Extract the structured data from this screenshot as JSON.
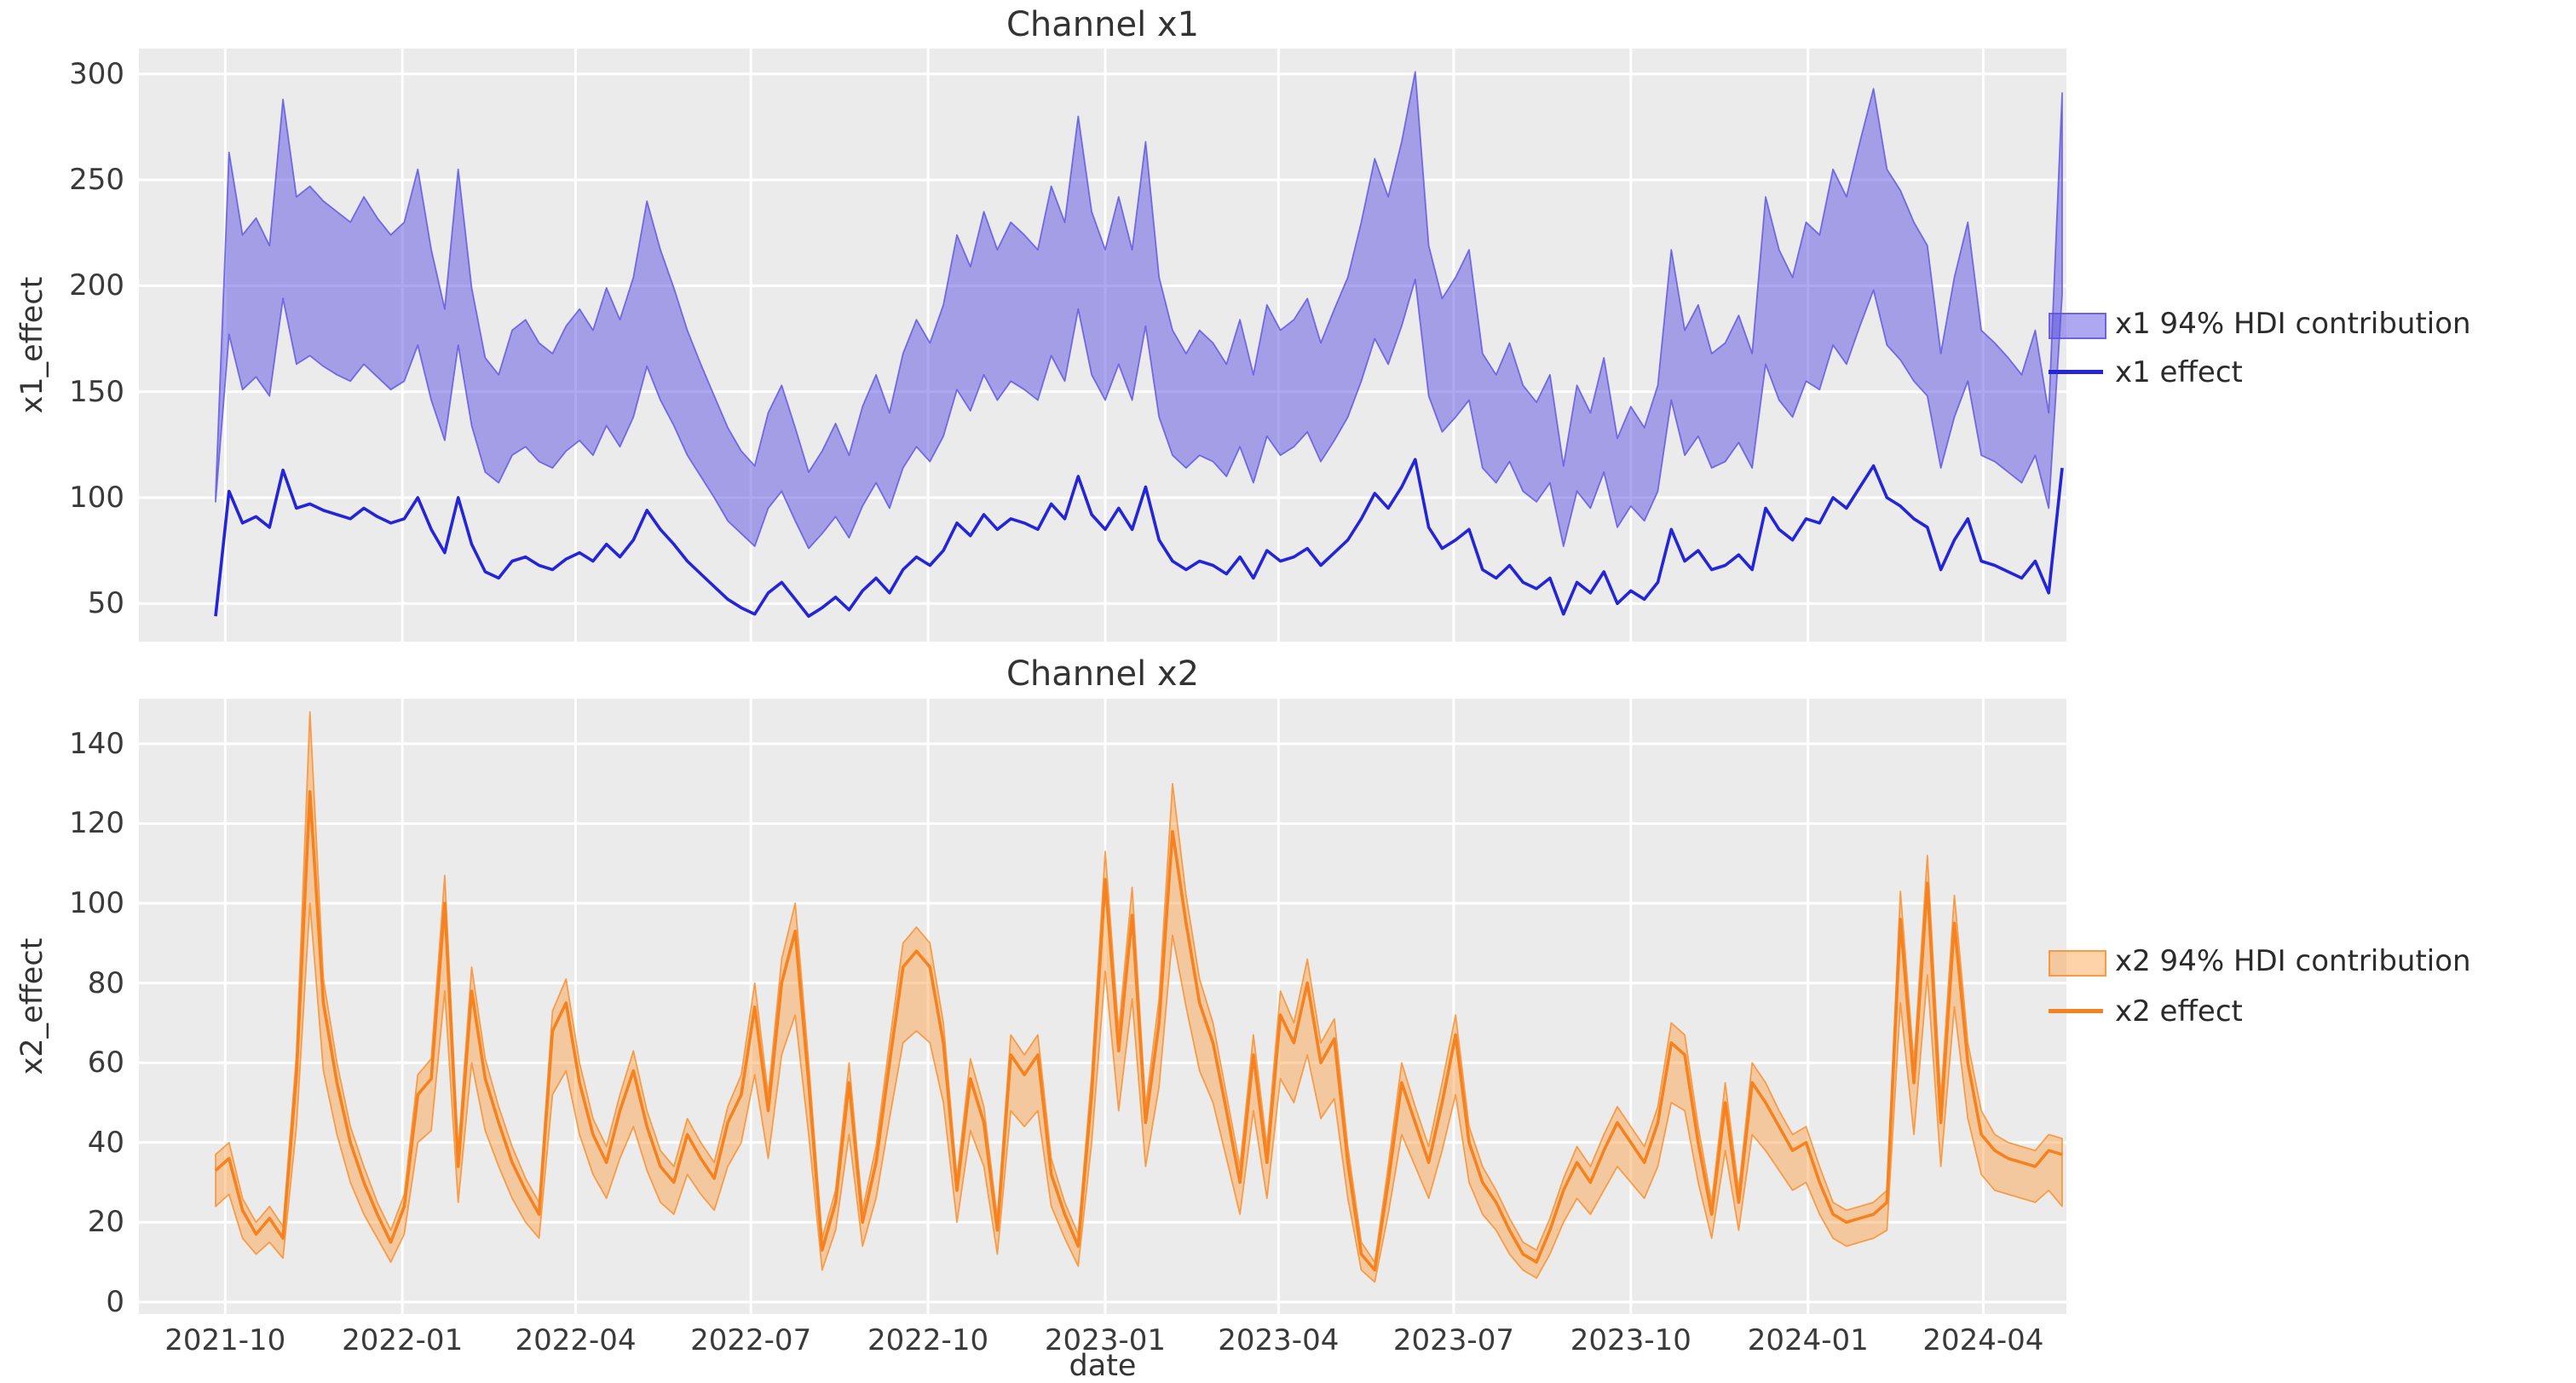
{
  "figure": {
    "background": "#ffffff",
    "plot_background": "#ebebeb",
    "grid_color": "#ffffff",
    "tick_color": "#3a3a3a",
    "text_color": "#333333"
  },
  "xaxis": {
    "label": "date",
    "n": 138,
    "ticks": [
      {
        "label": "2021-10",
        "t": 0.714
      },
      {
        "label": "2022-01",
        "t": 13.857
      },
      {
        "label": "2022-04",
        "t": 26.714
      },
      {
        "label": "2022-07",
        "t": 39.714
      },
      {
        "label": "2022-10",
        "t": 52.857
      },
      {
        "label": "2023-01",
        "t": 66.0
      },
      {
        "label": "2023-04",
        "t": 78.857
      },
      {
        "label": "2023-07",
        "t": 91.857
      },
      {
        "label": "2023-10",
        "t": 105.0
      },
      {
        "label": "2024-01",
        "t": 118.143
      },
      {
        "label": "2024-04",
        "t": 131.143
      }
    ]
  },
  "chart_data": [
    {
      "type": "area",
      "title": "Channel x1",
      "ylabel": "x1_effect",
      "yticks": [
        50,
        100,
        150,
        200,
        250,
        300
      ],
      "ylim": [
        32,
        312
      ],
      "grid": true,
      "legend_position": "right-outside",
      "x_unit": "weekly dates 2021-09-26 to 2024-05-12",
      "series": [
        {
          "name": "x1 94% HDI contribution",
          "kind": "band",
          "fill": "rgba(92,82,226,0.5)",
          "edge": "rgba(92,82,226,0.8)",
          "lower": [
            98,
            177,
            151,
            157,
            148,
            194,
            163,
            167,
            162,
            158,
            155,
            163,
            157,
            151,
            155,
            172,
            146,
            127,
            172,
            134,
            112,
            107,
            120,
            124,
            117,
            114,
            122,
            127,
            120,
            134,
            124,
            138,
            162,
            146,
            134,
            120,
            110,
            100,
            89,
            83,
            77,
            95,
            103,
            89,
            76,
            83,
            91,
            81,
            96,
            107,
            95,
            114,
            124,
            117,
            129,
            151,
            141,
            158,
            146,
            155,
            151,
            146,
            167,
            155,
            189,
            158,
            146,
            163,
            146,
            181,
            138,
            120,
            114,
            120,
            117,
            110,
            124,
            107,
            129,
            120,
            124,
            131,
            117,
            127,
            138,
            155,
            175,
            163,
            181,
            203,
            148,
            131,
            138,
            146,
            114,
            107,
            117,
            103,
            98,
            107,
            77,
            103,
            95,
            112,
            86,
            96,
            89,
            103,
            146,
            120,
            129,
            114,
            117,
            126,
            114,
            163,
            146,
            138,
            155,
            151,
            172,
            163,
            181,
            198,
            172,
            165,
            155,
            148,
            114,
            138,
            155,
            120,
            117,
            112,
            107,
            120,
            95,
            196
          ],
          "upper": [
            101,
            263,
            224,
            232,
            219,
            288,
            242,
            247,
            240,
            235,
            230,
            242,
            232,
            224,
            230,
            255,
            217,
            189,
            255,
            199,
            166,
            158,
            179,
            184,
            173,
            168,
            181,
            189,
            179,
            199,
            184,
            204,
            240,
            217,
            199,
            179,
            163,
            148,
            133,
            122,
            115,
            140,
            153,
            133,
            112,
            122,
            135,
            120,
            143,
            158,
            140,
            168,
            184,
            173,
            191,
            224,
            209,
            235,
            217,
            230,
            224,
            217,
            247,
            230,
            280,
            235,
            217,
            242,
            217,
            268,
            204,
            179,
            168,
            179,
            173,
            163,
            184,
            158,
            191,
            179,
            184,
            194,
            173,
            189,
            204,
            230,
            260,
            242,
            268,
            301,
            219,
            194,
            204,
            217,
            168,
            158,
            173,
            153,
            145,
            158,
            115,
            153,
            140,
            166,
            128,
            143,
            133,
            153,
            217,
            179,
            191,
            168,
            173,
            186,
            168,
            242,
            217,
            204,
            230,
            224,
            255,
            242,
            268,
            293,
            255,
            245,
            230,
            219,
            168,
            204,
            230,
            179,
            173,
            166,
            158,
            179,
            140,
            291
          ]
        },
        {
          "name": "x1 effect",
          "kind": "line",
          "color": "#2424d9",
          "values": [
            44,
            103,
            88,
            91,
            86,
            113,
            95,
            97,
            94,
            92,
            90,
            95,
            91,
            88,
            90,
            100,
            85,
            74,
            100,
            78,
            65,
            62,
            70,
            72,
            68,
            66,
            71,
            74,
            70,
            78,
            72,
            80,
            94,
            85,
            78,
            70,
            64,
            58,
            52,
            48,
            45,
            55,
            60,
            52,
            44,
            48,
            53,
            47,
            56,
            62,
            55,
            66,
            72,
            68,
            75,
            88,
            82,
            92,
            85,
            90,
            88,
            85,
            97,
            90,
            110,
            92,
            85,
            95,
            85,
            105,
            80,
            70,
            66,
            70,
            68,
            64,
            72,
            62,
            75,
            70,
            72,
            76,
            68,
            74,
            80,
            90,
            102,
            95,
            105,
            118,
            86,
            76,
            80,
            85,
            66,
            62,
            68,
            60,
            57,
            62,
            45,
            60,
            55,
            65,
            50,
            56,
            52,
            60,
            85,
            70,
            75,
            66,
            68,
            73,
            66,
            95,
            85,
            80,
            90,
            88,
            100,
            95,
            105,
            115,
            100,
            96,
            90,
            86,
            66,
            80,
            90,
            70,
            68,
            65,
            62,
            70,
            55,
            114
          ]
        }
      ]
    },
    {
      "type": "area",
      "title": "Channel x2",
      "ylabel": "x2_effect",
      "yticks": [
        0,
        20,
        40,
        60,
        80,
        100,
        120,
        140
      ],
      "ylim": [
        -3,
        151.3
      ],
      "grid": true,
      "legend_position": "right-outside",
      "x_unit": "weekly dates 2021-09-26 to 2024-05-12",
      "series": [
        {
          "name": "x2 94% HDI contribution",
          "kind": "band",
          "fill": "rgba(255,158,66,0.45)",
          "edge": "rgba(250,140,40,0.8)",
          "lower": [
            24,
            27,
            16,
            12,
            15,
            11,
            44,
            100,
            58,
            42,
            30,
            22,
            16,
            10,
            17,
            40,
            43,
            78,
            25,
            60,
            43,
            34,
            26,
            20,
            16,
            52,
            58,
            42,
            32,
            26,
            36,
            44,
            33,
            25,
            22,
            32,
            27,
            23,
            34,
            40,
            57,
            36,
            62,
            72,
            42,
            8,
            18,
            42,
            14,
            26,
            46,
            65,
            68,
            65,
            50,
            20,
            43,
            34,
            12,
            48,
            44,
            48,
            24,
            16,
            9,
            40,
            83,
            48,
            76,
            34,
            54,
            92,
            74,
            58,
            50,
            36,
            22,
            48,
            26,
            56,
            50,
            62,
            46,
            51,
            26,
            8,
            5,
            22,
            42,
            34,
            26,
            38,
            52,
            30,
            22,
            18,
            12,
            8,
            6,
            12,
            20,
            26,
            22,
            28,
            34,
            30,
            26,
            34,
            50,
            48,
            30,
            16,
            38,
            18,
            42,
            38,
            33,
            28,
            30,
            22,
            16,
            14,
            15,
            16,
            18,
            75,
            42,
            82,
            34,
            74,
            46,
            32,
            28,
            27,
            26,
            25,
            28,
            24
          ],
          "upper": [
            37,
            40,
            26,
            20,
            24,
            19,
            62,
            148,
            81,
            60,
            44,
            34,
            25,
            18,
            27,
            57,
            61,
            107,
            38,
            84,
            61,
            49,
            39,
            31,
            25,
            73,
            81,
            60,
            46,
            39,
            52,
            63,
            48,
            38,
            34,
            46,
            40,
            35,
            49,
            57,
            80,
            52,
            86,
            100,
            60,
            16,
            28,
            60,
            23,
            39,
            65,
            90,
            94,
            90,
            70,
            31,
            61,
            49,
            21,
            67,
            62,
            67,
            36,
            25,
            17,
            57,
            113,
            68,
            104,
            49,
            76,
            130,
            102,
            81,
            70,
            52,
            34,
            67,
            39,
            78,
            70,
            86,
            65,
            71,
            39,
            15,
            10,
            34,
            60,
            49,
            39,
            55,
            72,
            44,
            34,
            28,
            21,
            15,
            13,
            21,
            31,
            39,
            34,
            42,
            49,
            44,
            39,
            49,
            70,
            67,
            44,
            25,
            55,
            28,
            60,
            55,
            48,
            42,
            44,
            34,
            25,
            23,
            24,
            25,
            28,
            103,
            60,
            112,
            51,
            102,
            65,
            48,
            42,
            40,
            39,
            38,
            42,
            41
          ]
        },
        {
          "name": "x2 effect",
          "kind": "line",
          "color": "#f5821e",
          "values": [
            33,
            36,
            23,
            17,
            21,
            16,
            57,
            128,
            75,
            55,
            40,
            30,
            22,
            15,
            24,
            52,
            56,
            100,
            34,
            78,
            56,
            45,
            35,
            28,
            22,
            68,
            75,
            55,
            42,
            35,
            48,
            58,
            44,
            34,
            30,
            42,
            36,
            31,
            45,
            52,
            74,
            48,
            80,
            93,
            55,
            13,
            25,
            55,
            20,
            35,
            60,
            84,
            88,
            84,
            65,
            28,
            56,
            45,
            18,
            62,
            57,
            62,
            32,
            22,
            14,
            52,
            106,
            63,
            97,
            45,
            70,
            118,
            95,
            75,
            65,
            48,
            30,
            62,
            35,
            72,
            65,
            80,
            60,
            66,
            35,
            12,
            8,
            30,
            55,
            45,
            35,
            50,
            67,
            40,
            30,
            25,
            18,
            12,
            10,
            18,
            28,
            35,
            30,
            38,
            45,
            40,
            35,
            45,
            65,
            62,
            40,
            22,
            50,
            25,
            55,
            50,
            44,
            38,
            40,
            30,
            22,
            20,
            21,
            22,
            25,
            96,
            55,
            105,
            45,
            95,
            60,
            42,
            38,
            36,
            35,
            34,
            38,
            37
          ]
        }
      ]
    }
  ]
}
